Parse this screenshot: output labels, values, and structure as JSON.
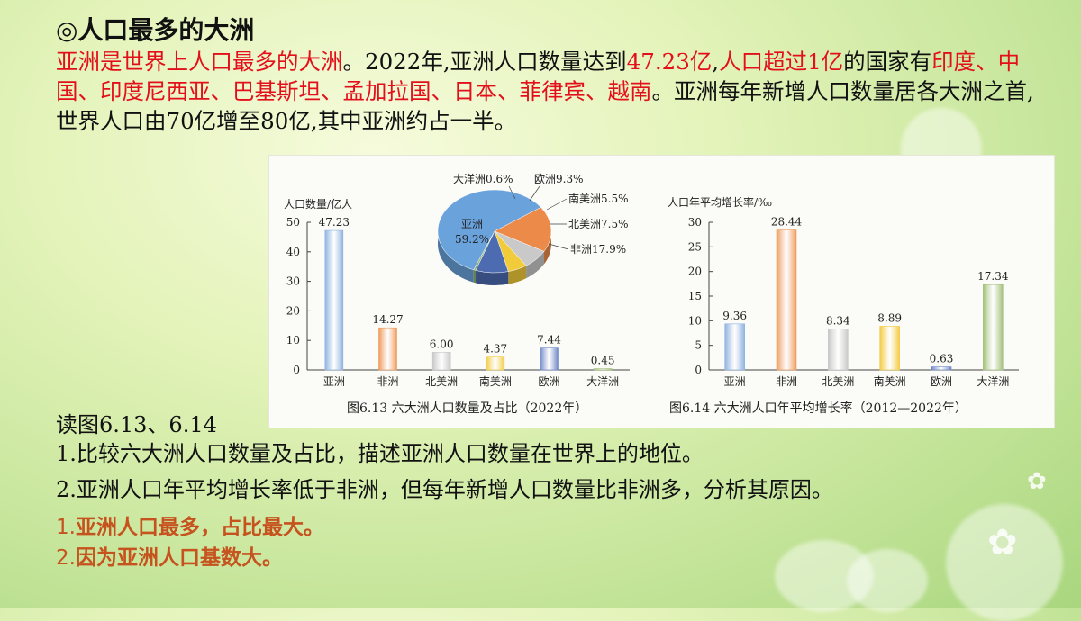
{
  "slide": {
    "title": "◎人口最多的大洲",
    "paragraph": [
      {
        "t": "亚洲是世界上人口最多的大洲",
        "red": true
      },
      {
        "t": "。2022年,亚洲人口数量达到",
        "red": false
      },
      {
        "t": "47.23亿",
        "red": true
      },
      {
        "t": ",",
        "red": false
      },
      {
        "t": "人口超过1亿",
        "red": true
      },
      {
        "t": "的国家有",
        "red": false
      },
      {
        "t": "印度、中国、印度尼西亚、巴基斯坦、孟加拉国、日本、菲律宾、越南",
        "red": true
      },
      {
        "t": "。亚洲每年新增人口数量居各大洲之首,世界人口由70亿增至80亿,其中亚洲约占一半。",
        "red": false
      }
    ],
    "read_label": "读图6.13、6.14",
    "questions": [
      "1.比较六大洲人口数量及占比，描述亚洲人口数量在世界上的地位。",
      "2.亚洲人口年平均增长率低于非洲，但每年新增人口数量比非洲多，分析其原因。"
    ],
    "answers": [
      {
        "num": "1.",
        "text": "亚洲人口最多，占比最大。"
      },
      {
        "num": "2.",
        "text": "因为亚洲人口基数大。"
      }
    ]
  },
  "chart_data": [
    {
      "type": "bar",
      "title": "图6.13 六大洲人口数量及占比（2022年）",
      "ylabel": "人口数量/亿人",
      "ylim": [
        0,
        50
      ],
      "yticks": [
        "0",
        "10",
        "20",
        "30",
        "40",
        "50"
      ],
      "categories": [
        "亚洲",
        "非洲",
        "北美洲",
        "南美洲",
        "欧洲",
        "大洋洲"
      ],
      "values": [
        47.23,
        14.27,
        6.0,
        4.37,
        7.44,
        0.45
      ],
      "value_labels": [
        "47.23",
        "14.27",
        "6.00",
        "4.37",
        "7.44",
        "0.45"
      ],
      "colors": [
        "#8fb3e0",
        "#ef9a5a",
        "#c8c8c8",
        "#f2cc45",
        "#6d86c6",
        "#a3c07a"
      ],
      "pie": {
        "type": "pie",
        "slices": [
          {
            "label": "亚洲",
            "text": "亚洲",
            "pct": "59.2%",
            "value": 59.2,
            "color": "#6aa2dc"
          },
          {
            "label": "非洲",
            "text": "非洲17.9%",
            "value": 17.9,
            "color": "#ec8a4a"
          },
          {
            "label": "北美洲",
            "text": "北美洲7.5%",
            "value": 7.5,
            "color": "#c9c9c9"
          },
          {
            "label": "南美洲",
            "text": "南美洲5.5%",
            "value": 5.5,
            "color": "#f2cb3a"
          },
          {
            "label": "欧洲",
            "text": "欧洲9.3%",
            "value": 9.3,
            "color": "#4d6bb0"
          },
          {
            "label": "大洋洲",
            "text": "大洋洲0.6%",
            "value": 0.6,
            "color": "#8fb26a"
          }
        ]
      }
    },
    {
      "type": "bar",
      "title": "图6.14 六大洲人口年平均增长率（2012—2022年）",
      "ylabel": "人口年平均增长率/‰",
      "ylim": [
        0,
        30
      ],
      "yticks": [
        "0",
        "5",
        "10",
        "15",
        "20",
        "25",
        "30"
      ],
      "categories": [
        "亚洲",
        "非洲",
        "北美洲",
        "南美洲",
        "欧洲",
        "大洋洲"
      ],
      "values": [
        9.36,
        28.44,
        8.34,
        8.89,
        0.63,
        17.34
      ],
      "value_labels": [
        "9.36",
        "28.44",
        "8.34",
        "8.89",
        "0.63",
        "17.34"
      ],
      "colors": [
        "#8fb3e0",
        "#ef9a5a",
        "#c8c8c8",
        "#f2cc45",
        "#6d86c6",
        "#a3c07a"
      ]
    }
  ]
}
